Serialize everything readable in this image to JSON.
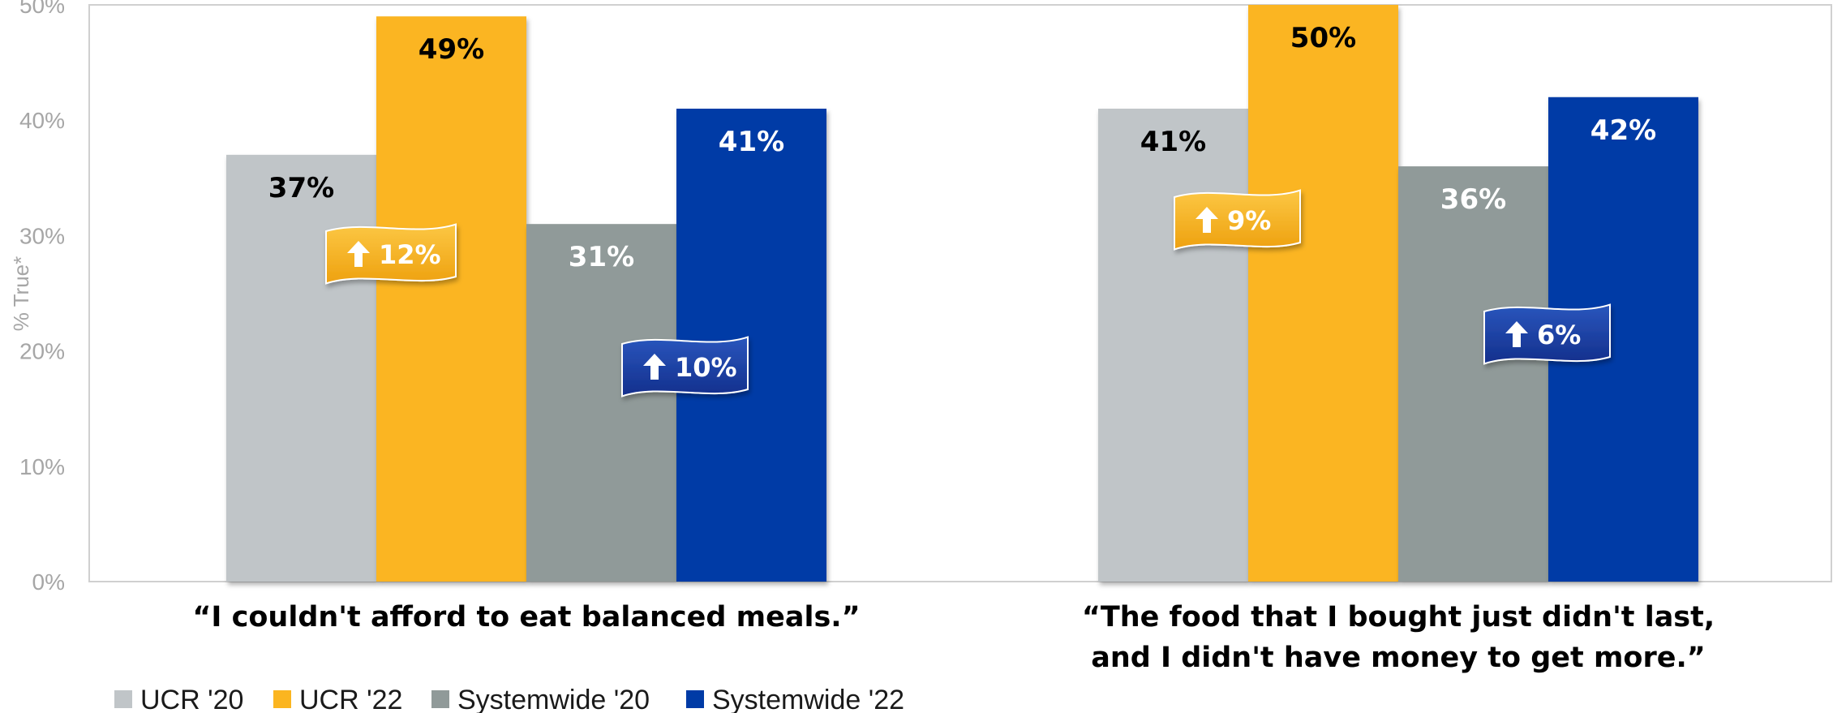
{
  "chart_data": {
    "type": "bar",
    "ylabel": "% True*",
    "ylim": [
      0,
      50
    ],
    "yticks": [
      "0%",
      "10%",
      "20%",
      "30%",
      "40%",
      "50%"
    ],
    "grid": false,
    "legend_position": "bottom-left",
    "categories": [
      [
        "“I couldn't afford to eat balanced meals.”"
      ],
      [
        "“The food that I bought just didn't last,",
        "and I didn't have money to get more.”"
      ]
    ],
    "series": [
      {
        "name": "UCR '20",
        "color": "#c0c5c8",
        "values": [
          37,
          41
        ],
        "labels": [
          "37%",
          "41%"
        ],
        "label_color": "#000000"
      },
      {
        "name": "UCR '22",
        "color": "#fbb520",
        "values": [
          49,
          50
        ],
        "labels": [
          "49%",
          "50%"
        ],
        "label_color": "#000000"
      },
      {
        "name": "Systemwide '20",
        "color": "#909a99",
        "values": [
          31,
          36
        ],
        "labels": [
          "31%",
          "36%"
        ],
        "label_color": "#ffffff"
      },
      {
        "name": "Systemwide '22",
        "color": "#003ba6",
        "values": [
          41,
          42
        ],
        "labels": [
          "41%",
          "42%"
        ],
        "label_color": "#ffffff"
      }
    ],
    "annotations": [
      {
        "category": 0,
        "text": "12%",
        "direction": "up",
        "color": "#f5ad1b",
        "series": "UCR"
      },
      {
        "category": 0,
        "text": "10%",
        "direction": "up",
        "color": "#1b3fa3",
        "series": "Systemwide"
      },
      {
        "category": 1,
        "text": "9%",
        "direction": "up",
        "color": "#f5ad1b",
        "series": "UCR"
      },
      {
        "category": 1,
        "text": "6%",
        "direction": "up",
        "color": "#1b3fa3",
        "series": "Systemwide"
      }
    ]
  }
}
